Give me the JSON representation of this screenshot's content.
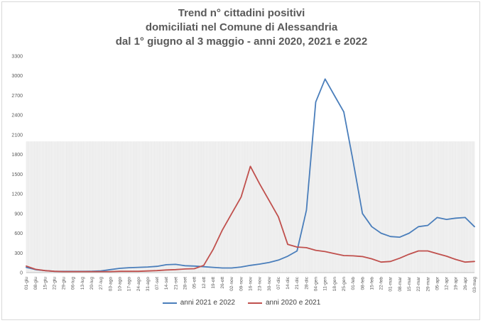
{
  "chart_data": {
    "type": "line",
    "title_lines": [
      "Trend n° cittadini positivi",
      "domiciliati nel Comune di Alessandria",
      "dal 1° giugno al 3 maggio - anni 2020, 2021 e 2022"
    ],
    "xlabel": "",
    "ylabel": "",
    "ylim": [
      0,
      3300
    ],
    "y_ticks": [
      "0",
      "300",
      "600",
      "900",
      "1200",
      "1500",
      "1800",
      "2100",
      "2400",
      "2700",
      "3000",
      "3300"
    ],
    "x_categories": [
      "01-giu",
      "08-giu",
      "15-giu",
      "22-giu",
      "29-giu",
      "06-lug",
      "13-lug",
      "20-lug",
      "27-lug",
      "03-ago",
      "10-ago",
      "17-ago",
      "24-ago",
      "31-ago",
      "07-set",
      "14-set",
      "21-set",
      "28-set",
      "05-ott",
      "12-ott",
      "19-ott",
      "26-ott",
      "02-nov",
      "09-nov",
      "16-nov",
      "23-nov",
      "30-nov",
      "07-dic",
      "14-dic",
      "21-dic",
      "28-dic",
      "04-gen",
      "11-gen",
      "18-gen",
      "25-gen",
      "01-feb",
      "08-feb",
      "15-feb",
      "22-feb",
      "01-mar",
      "08-mar",
      "15-mar",
      "22-mar",
      "29-mar",
      "05-apr",
      "12-apr",
      "19-apr",
      "26-apr",
      "03-mag"
    ],
    "grid": "vertical daily lines in plot background",
    "legend_position": "bottom",
    "series": [
      {
        "name": "anni 2021 e 2022",
        "color": "#4a7ebb",
        "values": [
          80,
          45,
          30,
          20,
          18,
          18,
          18,
          20,
          25,
          45,
          65,
          75,
          80,
          85,
          95,
          120,
          125,
          105,
          100,
          90,
          80,
          70,
          70,
          85,
          110,
          130,
          155,
          190,
          250,
          330,
          950,
          2600,
          2950,
          2700,
          2450,
          1700,
          900,
          700,
          600,
          550,
          540,
          600,
          700,
          720,
          840,
          810,
          830,
          840,
          700
        ]
      },
      {
        "name": "anni 2020 e 2021",
        "color": "#c0504d",
        "values": [
          100,
          50,
          30,
          20,
          15,
          15,
          15,
          15,
          15,
          15,
          20,
          20,
          20,
          25,
          30,
          40,
          45,
          55,
          60,
          110,
          350,
          650,
          900,
          1150,
          1620,
          1350,
          1100,
          850,
          430,
          390,
          380,
          340,
          320,
          290,
          260,
          255,
          245,
          210,
          160,
          170,
          220,
          280,
          330,
          330,
          290,
          250,
          200,
          160,
          170
        ]
      }
    ]
  }
}
